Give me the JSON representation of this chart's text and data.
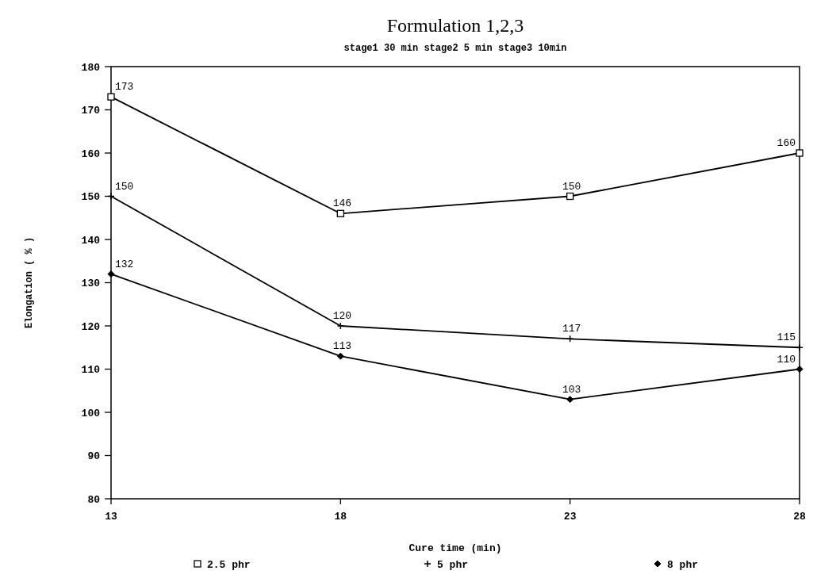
{
  "chart_data": {
    "type": "line",
    "title": "Formulation 1,2,3",
    "subtitle": "stage1 30 min stage2 5 min stage3 10min",
    "xlabel": "Cure time (min)",
    "ylabel": "Elongation ( % )",
    "x": [
      13,
      18,
      23,
      28
    ],
    "xlim": [
      13,
      28
    ],
    "xticks": [
      13,
      18,
      23,
      28
    ],
    "ylim": [
      80,
      180
    ],
    "yticks": [
      80,
      90,
      100,
      110,
      120,
      130,
      140,
      150,
      160,
      170,
      180
    ],
    "series": [
      {
        "name": "2.5 phr",
        "color": "#000000",
        "marker": "square",
        "values": [
          173,
          146,
          150,
          160
        ]
      },
      {
        "name": "5 phr",
        "color": "#000000",
        "marker": "cross",
        "values": [
          150,
          120,
          117,
          115
        ]
      },
      {
        "name": "8 phr",
        "color": "#000000",
        "marker": "diamond",
        "values": [
          132,
          113,
          103,
          110
        ]
      }
    ],
    "data_labels": true,
    "legend": "bottom",
    "grid": false,
    "line_style": "solid"
  }
}
